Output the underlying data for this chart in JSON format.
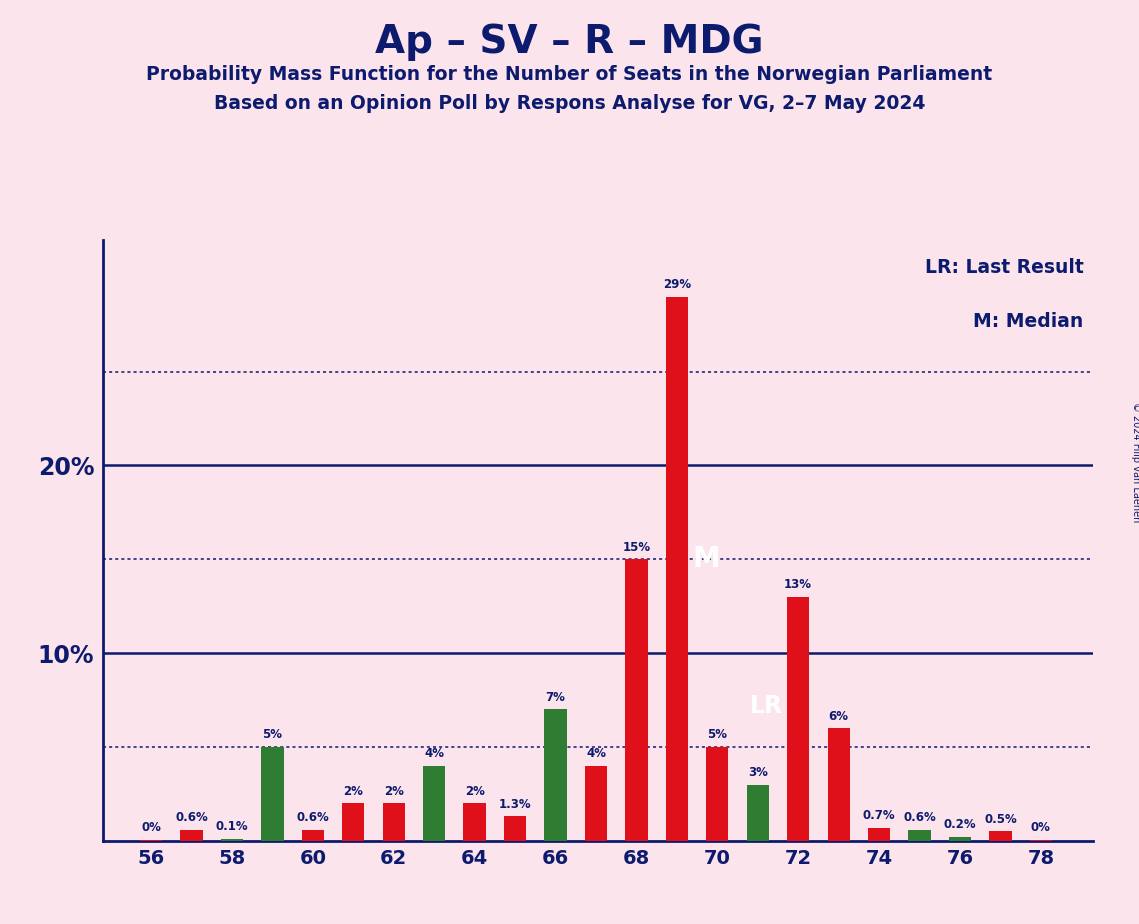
{
  "title": "Ap – SV – R – MDG",
  "subtitle1": "Probability Mass Function for the Number of Seats in the Norwegian Parliament",
  "subtitle2": "Based on an Opinion Poll by Respons Analyse for VG, 2–7 May 2024",
  "copyright": "© 2024 Filip van Laenen",
  "legend_lr": "LR: Last Result",
  "legend_m": "M: Median",
  "background_color": "#fce4ec",
  "bar_red": "#e0101a",
  "bar_green": "#2e7d32",
  "axis_color": "#0d1b6e",
  "text_color": "#0d1b6e",
  "seats": [
    56,
    57,
    58,
    59,
    60,
    61,
    62,
    63,
    64,
    65,
    66,
    67,
    68,
    69,
    70,
    71,
    72,
    73,
    74,
    75,
    76,
    77,
    78
  ],
  "red_values": [
    0.05,
    0.6,
    0.0,
    0.0,
    0.6,
    2.0,
    2.0,
    0.0,
    2.0,
    1.3,
    0.0,
    4.0,
    15.0,
    29.0,
    5.0,
    0.0,
    13.0,
    6.0,
    0.7,
    0.0,
    0.0,
    0.5,
    0.05
  ],
  "green_values": [
    0.0,
    0.0,
    0.1,
    5.0,
    0.0,
    0.0,
    0.0,
    4.0,
    0.0,
    0.0,
    7.0,
    0.0,
    0.0,
    0.0,
    0.0,
    3.0,
    0.0,
    0.0,
    0.0,
    0.6,
    0.2,
    0.0,
    0.0
  ],
  "red_labels": [
    "0%",
    "0.6%",
    "",
    "",
    "0.6%",
    "2%",
    "2%",
    "",
    "2%",
    "1.3%",
    "",
    "4%",
    "15%",
    "29%",
    "5%",
    "",
    "13%",
    "6%",
    "0.7%",
    "",
    "",
    "0.5%",
    "0%"
  ],
  "green_labels": [
    "",
    "",
    "0.1%",
    "5%",
    "",
    "",
    "",
    "4%",
    "",
    "",
    "7%",
    "",
    "",
    "",
    "",
    "3%",
    "",
    "",
    "",
    "0.6%",
    "0.2%",
    "",
    ""
  ],
  "median_seat": 69,
  "lr_seat": 72,
  "ymax": 32,
  "xticks": [
    56,
    58,
    60,
    62,
    64,
    66,
    68,
    70,
    72,
    74,
    76,
    78
  ],
  "hlines_solid": [
    10,
    20
  ],
  "hlines_dotted": [
    5,
    15,
    25
  ]
}
